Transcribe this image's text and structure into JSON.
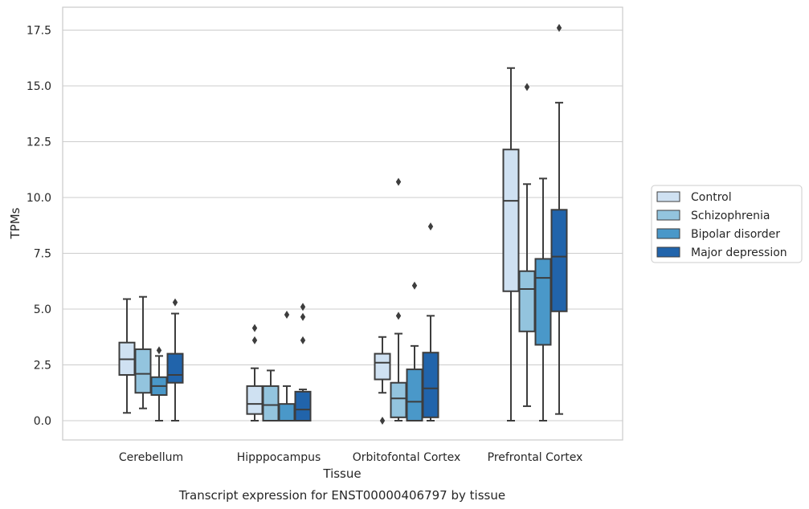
{
  "chart_data": {
    "type": "box",
    "caption": "Transcript expression for ENST00000406797 by tissue",
    "xlabel": "Tissue",
    "ylabel": "TPMs",
    "ylim": [
      -0.85,
      18.5
    ],
    "yticks": [
      0.0,
      2.5,
      5.0,
      7.5,
      10.0,
      12.5,
      15.0,
      17.5
    ],
    "ytick_labels": [
      "0.0",
      "2.5",
      "5.0",
      "7.5",
      "10.0",
      "12.5",
      "15.0",
      "17.5"
    ],
    "grid": true,
    "legend_position": "right",
    "categories": [
      "Cerebellum",
      "Hipppocampus",
      "Orbitofontal Cortex",
      "Prefrontal Cortex"
    ],
    "series": [
      {
        "name": "Control",
        "color": "#cfe1f2",
        "boxes": [
          {
            "whislo": 0.35,
            "q1": 2.05,
            "med": 2.75,
            "q3": 3.5,
            "whishi": 5.45,
            "fliers": []
          },
          {
            "whislo": 0.0,
            "q1": 0.3,
            "med": 0.75,
            "q3": 1.55,
            "whishi": 2.35,
            "fliers": [
              3.6,
              4.15
            ]
          },
          {
            "whislo": 1.25,
            "q1": 1.85,
            "med": 2.6,
            "q3": 3.0,
            "whishi": 3.75,
            "fliers": [
              0.0
            ]
          },
          {
            "whislo": 0.0,
            "q1": 5.8,
            "med": 9.85,
            "q3": 12.15,
            "whishi": 15.8,
            "fliers": []
          }
        ]
      },
      {
        "name": "Schizophrenia",
        "color": "#93c4de",
        "boxes": [
          {
            "whislo": 0.55,
            "q1": 1.25,
            "med": 2.1,
            "q3": 3.2,
            "whishi": 5.55,
            "fliers": []
          },
          {
            "whislo": 0.0,
            "q1": 0.0,
            "med": 0.7,
            "q3": 1.55,
            "whishi": 2.25,
            "fliers": []
          },
          {
            "whislo": 0.0,
            "q1": 0.15,
            "med": 1.0,
            "q3": 1.7,
            "whishi": 3.9,
            "fliers": [
              4.7,
              10.7
            ]
          },
          {
            "whislo": 0.65,
            "q1": 4.0,
            "med": 5.9,
            "q3": 6.7,
            "whishi": 10.6,
            "fliers": [
              14.95
            ]
          }
        ]
      },
      {
        "name": "Bipolar disorder",
        "color": "#4a98c9",
        "boxes": [
          {
            "whislo": 0.0,
            "q1": 1.15,
            "med": 1.55,
            "q3": 1.95,
            "whishi": 2.9,
            "fliers": [
              3.15
            ]
          },
          {
            "whislo": 0.0,
            "q1": 0.0,
            "med": 0.0,
            "q3": 0.75,
            "whishi": 1.55,
            "fliers": [
              4.75
            ]
          },
          {
            "whislo": 0.0,
            "q1": 0.0,
            "med": 0.85,
            "q3": 2.3,
            "whishi": 3.35,
            "fliers": [
              6.05
            ]
          },
          {
            "whislo": 0.0,
            "q1": 3.4,
            "med": 6.4,
            "q3": 7.25,
            "whishi": 10.85,
            "fliers": []
          }
        ]
      },
      {
        "name": "Major depression",
        "color": "#2164ab",
        "boxes": [
          {
            "whislo": 0.0,
            "q1": 1.7,
            "med": 2.05,
            "q3": 3.0,
            "whishi": 4.8,
            "fliers": [
              5.3
            ]
          },
          {
            "whislo": 0.0,
            "q1": 0.0,
            "med": 0.5,
            "q3": 1.3,
            "whishi": 1.4,
            "fliers": [
              3.6,
              4.65,
              5.1
            ]
          },
          {
            "whislo": 0.0,
            "q1": 0.15,
            "med": 1.45,
            "q3": 3.05,
            "whishi": 4.7,
            "fliers": [
              8.7
            ]
          },
          {
            "whislo": 0.3,
            "q1": 4.9,
            "med": 7.35,
            "q3": 9.45,
            "whishi": 14.25,
            "fliers": [
              17.6
            ]
          }
        ]
      }
    ]
  }
}
